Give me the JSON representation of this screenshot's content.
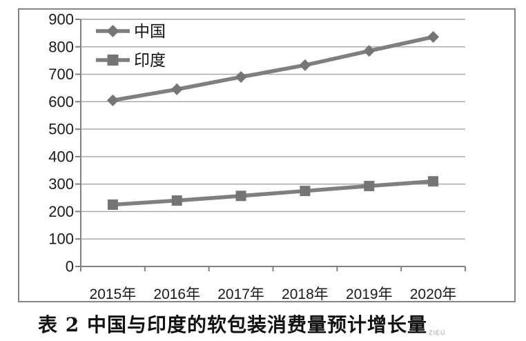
{
  "caption": "表 2 中国与印度的软包装消费量预计增长量",
  "watermark": "ZIEU",
  "chart_data": {
    "type": "line",
    "categories": [
      "2015年",
      "2016年",
      "2017年",
      "2018年",
      "2019年",
      "2020年"
    ],
    "series": [
      {
        "name": "中国",
        "marker": "diamond",
        "values": [
          605,
          645,
          690,
          733,
          785,
          836
        ]
      },
      {
        "name": "印度",
        "marker": "square",
        "values": [
          225,
          240,
          257,
          275,
          293,
          310
        ]
      }
    ],
    "title": "",
    "xlabel": "",
    "ylabel": "",
    "ylim": [
      0,
      900
    ],
    "ytick_step": 100,
    "yticks": [
      0,
      100,
      200,
      300,
      400,
      500,
      600,
      700,
      800,
      900
    ],
    "grid": "horizontal",
    "legend_position": "top-left-inside",
    "colors": {
      "series_line": "#7f7f7f",
      "marker_fill": "#757575",
      "gridline": "#a3a3a3",
      "axis": "#808080",
      "frame_border": "#848484",
      "tick_label": "#1a1a1a",
      "background": "#ffffff"
    }
  }
}
